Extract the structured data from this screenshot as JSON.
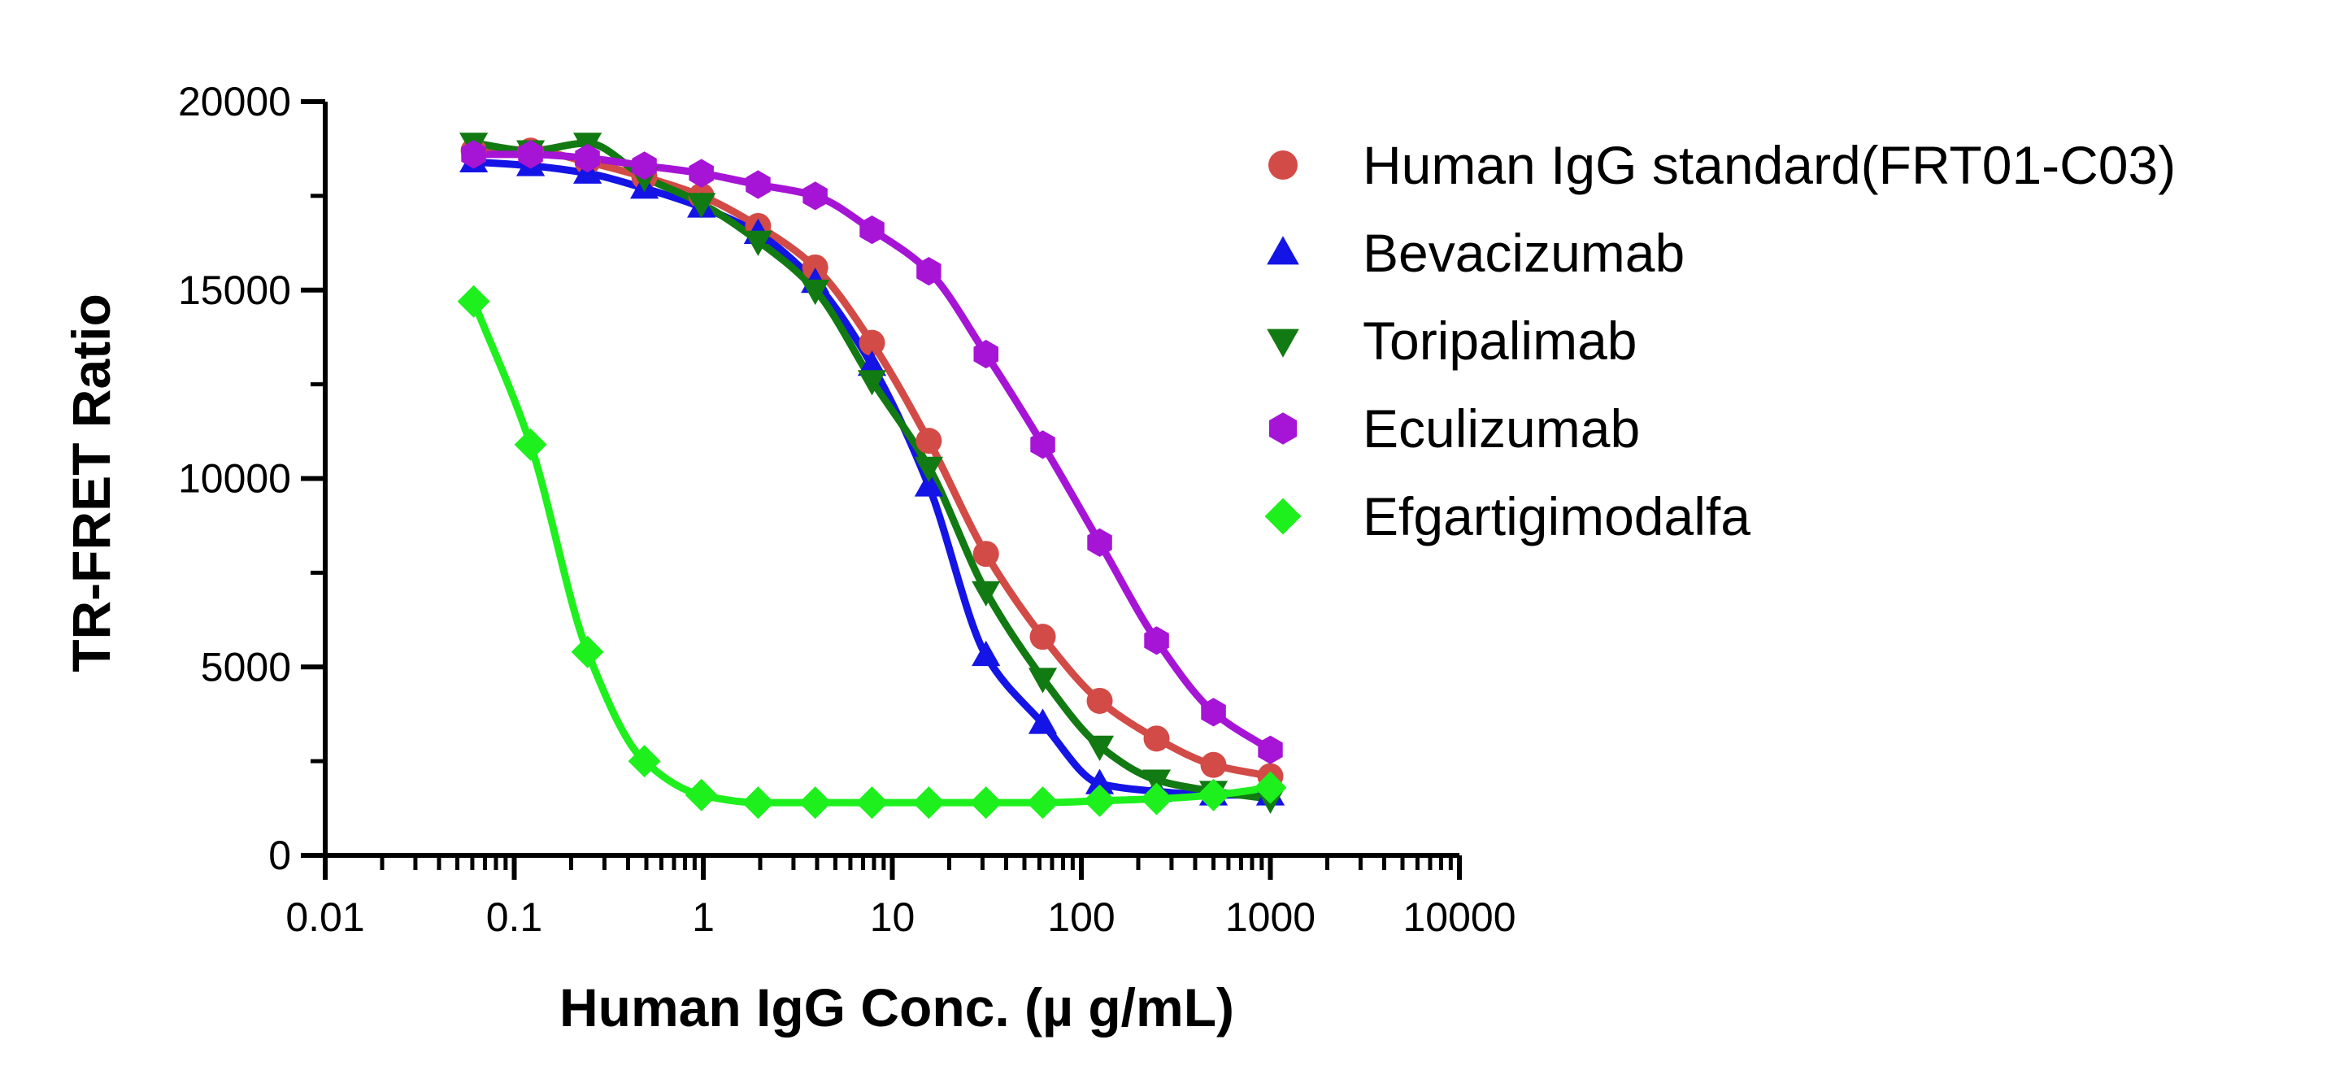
{
  "chart_data": {
    "type": "scatter",
    "title": "",
    "xlabel": "Human IgG Conc. (µ g/mL)",
    "ylabel": "TR-FRET Ratio",
    "xscale": "log",
    "xlim": [
      0.01,
      10000
    ],
    "ylim": [
      0,
      20000
    ],
    "x_ticks": [
      "0.01",
      "0.1",
      "1",
      "10",
      "100",
      "1000",
      "10000"
    ],
    "x_tick_values": [
      0.01,
      0.1,
      1,
      10,
      100,
      1000,
      10000
    ],
    "y_ticks": [
      "0",
      "5000",
      "10000",
      "15000",
      "20000"
    ],
    "y_tick_values": [
      0,
      5000,
      10000,
      15000,
      20000
    ],
    "grid": false,
    "legend_position": "top-right",
    "fitted_curves": true,
    "series": [
      {
        "name": "Human IgG standard(FRT01-C03)",
        "marker": "circle",
        "color": "#D24B47",
        "x": [
          0.061,
          0.122,
          0.244,
          0.488,
          0.977,
          1.95,
          3.91,
          7.81,
          15.6,
          31.3,
          62.5,
          125,
          250,
          500,
          1000
        ],
        "y": [
          18700,
          18700,
          18400,
          18000,
          17500,
          16700,
          15600,
          13600,
          11000,
          8000,
          5800,
          4100,
          3100,
          2400,
          2100
        ]
      },
      {
        "name": "Bevacizumab",
        "marker": "triangle-up",
        "color": "#1414E6",
        "x": [
          0.061,
          0.122,
          0.244,
          0.488,
          0.977,
          1.95,
          3.91,
          7.81,
          15.6,
          31.3,
          62.5,
          125,
          250,
          500,
          1000
        ],
        "y": [
          18400,
          18300,
          18100,
          17700,
          17200,
          16500,
          15200,
          13000,
          9800,
          5300,
          3500,
          1900,
          1700,
          1600,
          1600
        ]
      },
      {
        "name": "Toripalimab",
        "marker": "triangle-down",
        "color": "#127A12",
        "x": [
          0.061,
          0.122,
          0.244,
          0.488,
          0.977,
          1.95,
          3.91,
          7.81,
          15.6,
          31.3,
          62.5,
          125,
          250,
          500,
          1000
        ],
        "y": [
          18900,
          18700,
          18900,
          18000,
          17300,
          16300,
          15000,
          12600,
          10300,
          7000,
          4700,
          2900,
          2000,
          1700,
          1500
        ]
      },
      {
        "name": "Eculizumab",
        "marker": "hexagon",
        "color": "#A614D6",
        "x": [
          0.061,
          0.122,
          0.244,
          0.488,
          0.977,
          1.95,
          3.91,
          7.81,
          15.6,
          31.3,
          62.5,
          125,
          250,
          500,
          1000
        ],
        "y": [
          18600,
          18600,
          18500,
          18300,
          18100,
          17800,
          17500,
          16600,
          15500,
          13300,
          10900,
          8300,
          5700,
          3800,
          2800
        ]
      },
      {
        "name": "Efgartigimodalfa",
        "marker": "diamond",
        "color": "#1EF01E",
        "x": [
          0.061,
          0.122,
          0.244,
          0.488,
          0.977,
          1.95,
          3.91,
          7.81,
          15.6,
          31.3,
          62.5,
          125,
          250,
          500,
          1000
        ],
        "y": [
          14700,
          10900,
          5400,
          2500,
          1600,
          1400,
          1400,
          1400,
          1400,
          1400,
          1400,
          1450,
          1500,
          1600,
          1800
        ]
      }
    ]
  }
}
